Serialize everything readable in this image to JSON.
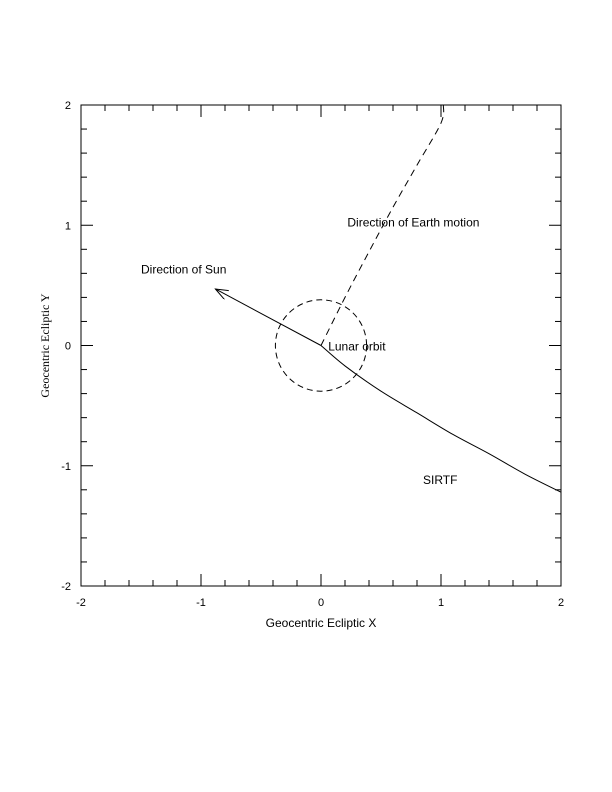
{
  "chart_data": {
    "type": "line",
    "title": "",
    "xlabel": "Geocentric Ecliptic X",
    "ylabel": "Geocentric Ecliptic Y",
    "xlim": [
      -2,
      2
    ],
    "ylim": [
      -2,
      2
    ],
    "xticks": [
      -2,
      -1,
      0,
      1,
      2
    ],
    "yticks": [
      -2,
      -1,
      0,
      1,
      2
    ],
    "grid": false,
    "legend": "none",
    "series": [
      {
        "name": "SIRTF",
        "style": "solid",
        "x": [
          0,
          0.2,
          0.5,
          0.8,
          1.1,
          1.4,
          1.7,
          2.0
        ],
        "y": [
          0,
          -0.17,
          -0.38,
          -0.56,
          -0.74,
          -0.9,
          -1.07,
          -1.22
        ]
      },
      {
        "name": "Direction of Earth motion",
        "style": "dashed",
        "x": [
          0,
          0.2,
          0.4,
          0.6,
          0.8,
          1.0,
          1.02
        ],
        "y": [
          0,
          0.4,
          0.78,
          1.15,
          1.5,
          1.85,
          2.0
        ]
      },
      {
        "name": "Lunar orbit",
        "style": "dashed-circle",
        "center": [
          0,
          0
        ],
        "radius": 0.38
      },
      {
        "name": "Direction of Sun",
        "style": "arrow",
        "x": [
          0,
          -0.88
        ],
        "y": [
          0,
          0.47
        ]
      }
    ],
    "annotations": [
      {
        "text": "Direction of Earth motion",
        "x": 0.22,
        "y": 0.99
      },
      {
        "text": "Direction of Sun",
        "x": -1.5,
        "y": 0.6
      },
      {
        "text": "Lunar orbit",
        "x": 0.06,
        "y": -0.04
      },
      {
        "text": "SIRTF",
        "x": 0.85,
        "y": -1.15
      }
    ]
  }
}
